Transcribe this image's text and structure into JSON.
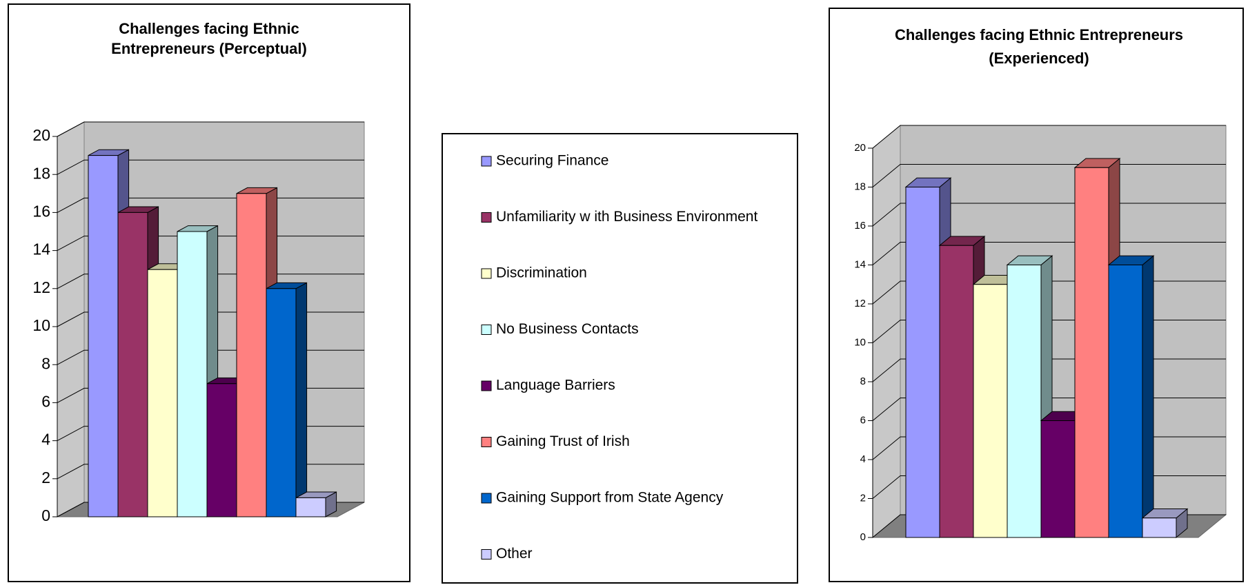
{
  "legend": {
    "items": [
      {
        "name": "Securing Finance",
        "color": "#9999ff"
      },
      {
        "name": "Unfamiliarity w ith Business Environment",
        "color": "#993366"
      },
      {
        "name": "Discrimination",
        "color": "#ffffcc"
      },
      {
        "name": "No Business Contacts",
        "color": "#ccffff"
      },
      {
        "name": "Language Barriers",
        "color": "#660066"
      },
      {
        "name": "Gaining Trust of Irish",
        "color": "#ff8080"
      },
      {
        "name": "Gaining Support from State Agency",
        "color": "#0066cc"
      },
      {
        "name": "Other",
        "color": "#ccccff"
      }
    ]
  },
  "chart_data": [
    {
      "type": "bar",
      "title": [
        "Challenges facing Ethnic",
        "Entrepreneurs (Perceptual)"
      ],
      "values": [
        19,
        16,
        13,
        15,
        7,
        17,
        12,
        1
      ],
      "ylim": [
        0,
        20
      ],
      "yticks": [
        0,
        2,
        4,
        6,
        8,
        10,
        12,
        14,
        16,
        18,
        20
      ],
      "grid": true
    },
    {
      "type": "bar",
      "title": [
        "Challenges facing Ethnic Entrepreneurs",
        "(Experienced)"
      ],
      "values": [
        18,
        15,
        13,
        14,
        6,
        19,
        14,
        1
      ],
      "ylim": [
        0,
        20
      ],
      "yticks": [
        0,
        2,
        4,
        6,
        8,
        10,
        12,
        14,
        16,
        18,
        20
      ],
      "grid": true
    }
  ]
}
